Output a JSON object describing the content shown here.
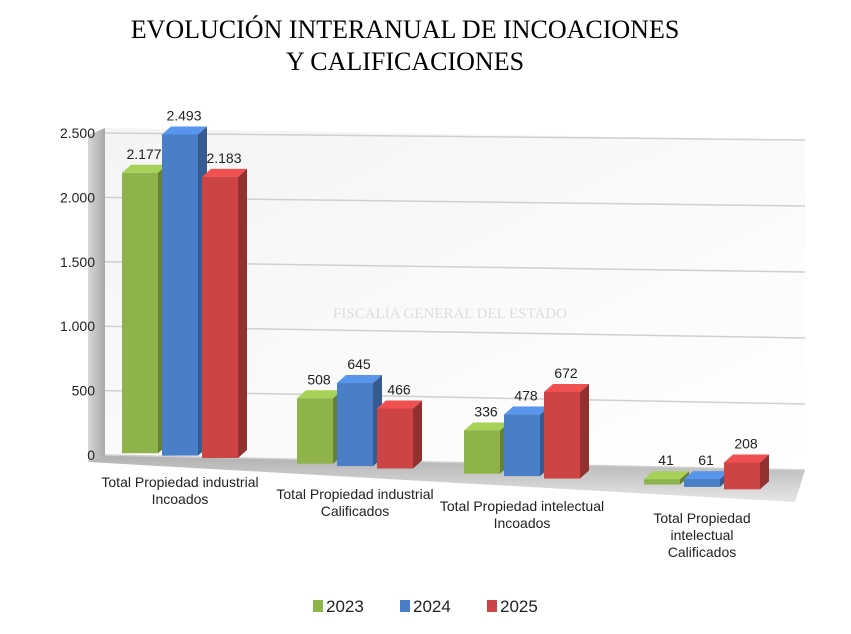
{
  "chart_data": {
    "type": "bar3d",
    "title": [
      "EVOLUCIÓN INTERANUAL DE INCOACIONES",
      "Y CALIFICACIONES"
    ],
    "watermark": "FISCALÍA GENERAL DEL ESTADO",
    "categories": [
      "Total Propiedad industrial Incoados",
      "Total Propiedad industrial Calificados",
      "Total Propiedad intelectual Incoados",
      "Total Propiedad intelectual Calificados"
    ],
    "series": [
      {
        "name": "2023",
        "color": "#8db34a",
        "values": [
          2177,
          508,
          336,
          41
        ],
        "value_labels": [
          "2.177",
          "508",
          "336",
          "41"
        ]
      },
      {
        "name": "2024",
        "color": "#4a7fc8",
        "values": [
          2493,
          645,
          478,
          61
        ],
        "value_labels": [
          "2.493",
          "645",
          "478",
          "61"
        ]
      },
      {
        "name": "2025",
        "color": "#cc4444",
        "values": [
          2183,
          466,
          672,
          208
        ],
        "value_labels": [
          "2.183",
          "466",
          "672",
          "208"
        ]
      }
    ],
    "ylim": [
      0,
      2500
    ],
    "yticks": [
      0,
      500,
      {
        "value": 1000,
        "label": "1.000"
      },
      {
        "value": 1500,
        "label": "1.500"
      },
      {
        "value": 2000,
        "label": "2.000"
      },
      {
        "value": 2500,
        "label": "2.500"
      }
    ],
    "grid": true,
    "legend": "bottom"
  }
}
